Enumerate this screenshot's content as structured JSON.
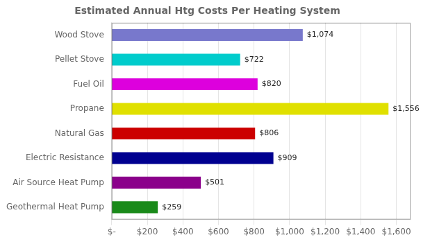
{
  "chart_data": {
    "type": "bar",
    "orientation": "horizontal",
    "title": "Estimated Annual Htg Costs Per Heating System",
    "categories": [
      "Geothermal Heat Pump",
      "Air Source Heat Pump",
      "Electric Resistance",
      "Natural Gas",
      "Propane",
      "Fuel Oil",
      "Pellet Stove",
      "Wood Stove"
    ],
    "values": [
      259,
      501,
      909,
      806,
      1556,
      820,
      722,
      1074
    ],
    "value_labels": [
      "$259",
      "$501",
      "$909",
      "$806",
      "$1,556",
      "$820",
      "$722",
      "$1,074"
    ],
    "data_labels": true,
    "colors": [
      "#1a8a1a",
      "#8b008b",
      "#000090",
      "#cc0000",
      "#e0e000",
      "#dd00dd",
      "#00cccc",
      "#7878cc"
    ],
    "xlim": [
      0,
      1680
    ],
    "xticks": [
      {
        "value": 0,
        "label": "$-"
      },
      {
        "value": 200,
        "label": "$200"
      },
      {
        "value": 400,
        "label": "$400"
      },
      {
        "value": 600,
        "label": "$600"
      },
      {
        "value": 800,
        "label": "$800"
      },
      {
        "value": 1000,
        "label": "$1,000"
      },
      {
        "value": 1200,
        "label": "$1,200"
      },
      {
        "value": 1400,
        "label": "$1,400"
      },
      {
        "value": 1600,
        "label": "$1,600"
      }
    ],
    "grid": true
  }
}
